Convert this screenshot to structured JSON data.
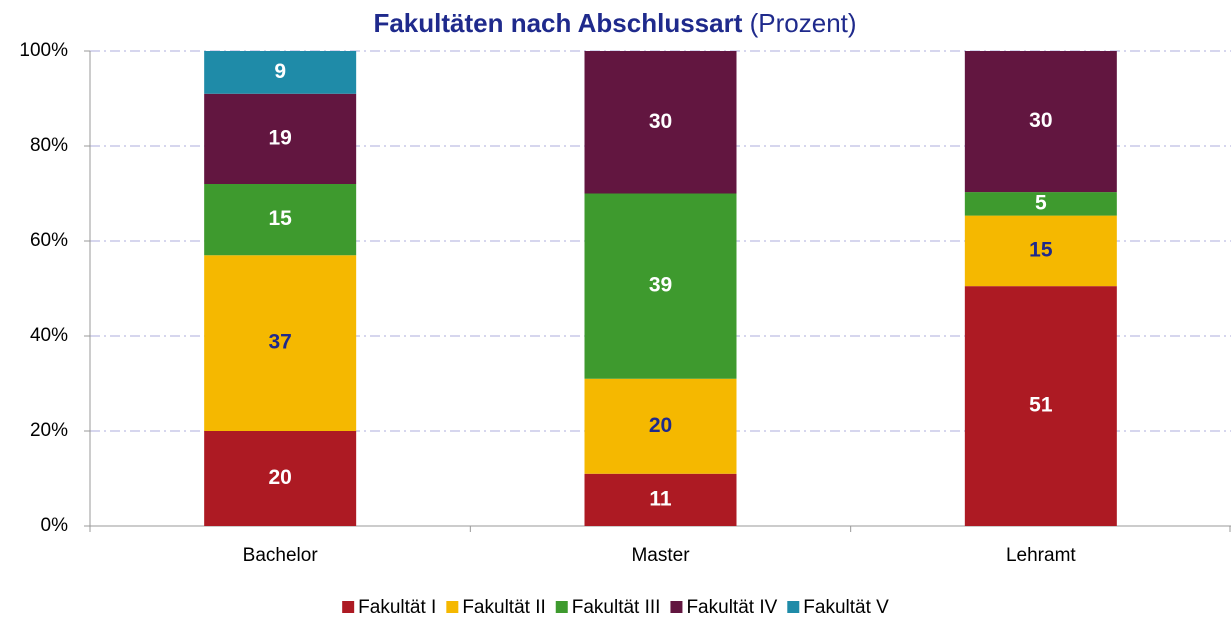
{
  "chart_data": {
    "type": "bar",
    "stacking": "percent",
    "title": "Fakultäten nach Abschlussart",
    "subtitle": "(Prozent)",
    "categories": [
      "Bachelor",
      "Master",
      "Lehramt"
    ],
    "series": [
      {
        "name": "Fakultät I",
        "color": "#ad1a23",
        "values": [
          20,
          11,
          51
        ]
      },
      {
        "name": "Fakultät II",
        "color": "#f5b800",
        "values": [
          37,
          20,
          15
        ]
      },
      {
        "name": "Fakultät III",
        "color": "#3e9a2e",
        "values": [
          15,
          39,
          5
        ]
      },
      {
        "name": "Fakultät IV",
        "color": "#621640",
        "values": [
          19,
          30,
          30
        ]
      },
      {
        "name": "Fakultät V",
        "color": "#1f8ba8",
        "values": [
          9,
          null,
          null
        ]
      }
    ],
    "ylim": [
      0,
      100
    ],
    "yticks": [
      {
        "value": 0,
        "label": "0%"
      },
      {
        "value": 20,
        "label": "20%"
      },
      {
        "value": 40,
        "label": "40%"
      },
      {
        "value": 60,
        "label": "60%"
      },
      {
        "value": 80,
        "label": "80%"
      },
      {
        "value": 100,
        "label": "100%"
      }
    ],
    "grid": true,
    "legend": "bottom"
  }
}
